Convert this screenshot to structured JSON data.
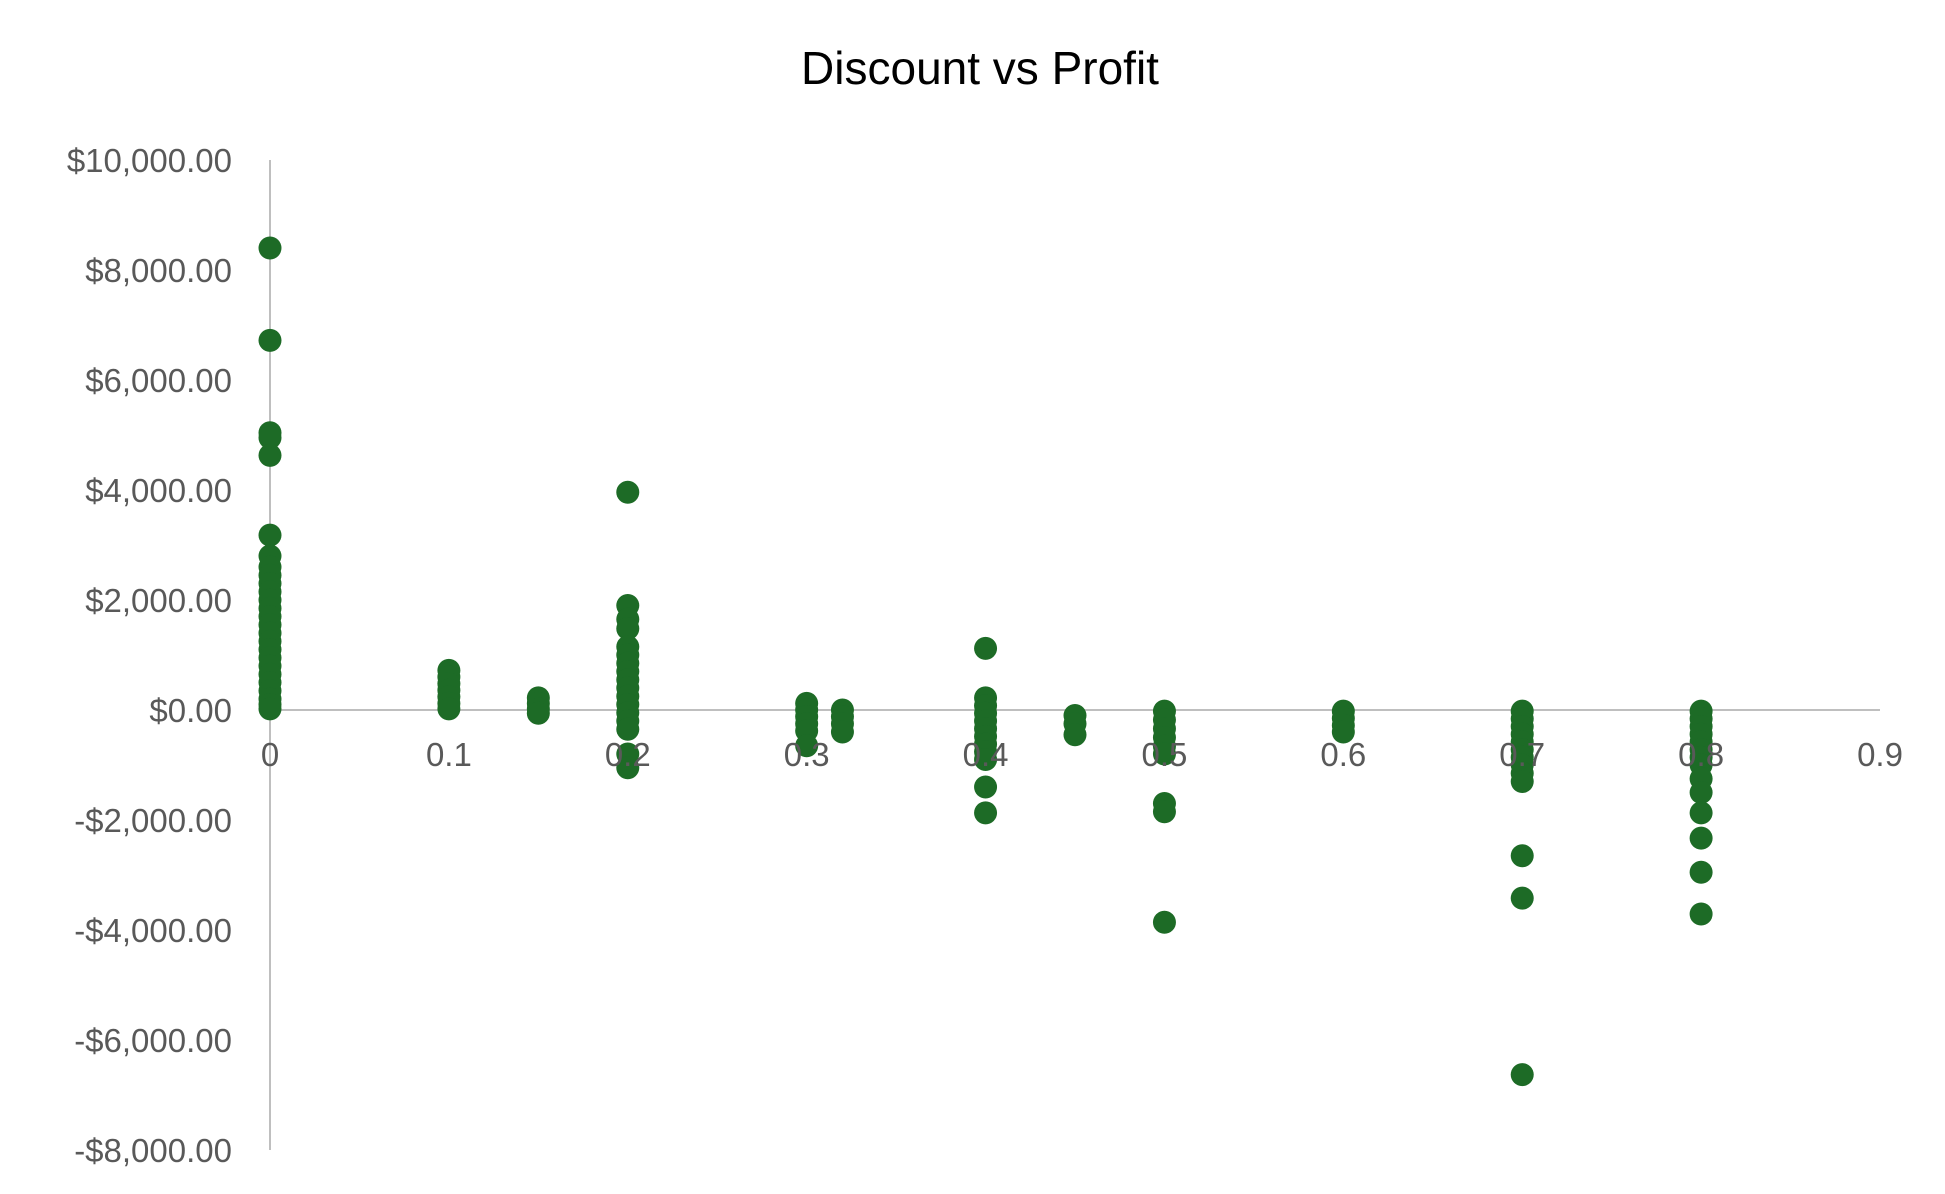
{
  "chart_data": {
    "type": "scatter",
    "title": "Discount vs Profit",
    "xlabel": "",
    "ylabel": "",
    "xlim": [
      0,
      0.9
    ],
    "ylim": [
      -8000,
      10000
    ],
    "x_ticks": [
      0,
      0.1,
      0.2,
      0.3,
      0.4,
      0.5,
      0.6,
      0.7,
      0.8,
      0.9
    ],
    "x_tick_labels": [
      "0",
      "0.1",
      "0.2",
      "0.3",
      "0.4",
      "0.5",
      "0.6",
      "0.7",
      "0.8",
      "0.9"
    ],
    "y_ticks": [
      10000,
      8000,
      6000,
      4000,
      2000,
      0,
      -2000,
      -4000,
      -6000,
      -8000
    ],
    "y_tick_labels": [
      "$10,000.00",
      "$8,000.00",
      "$6,000.00",
      "$4,000.00",
      "$2,000.00",
      "$0.00",
      "-$2,000.00",
      "-$4,000.00",
      "-$6,000.00",
      "-$8,000.00"
    ],
    "grid": false,
    "legend": "none",
    "marker_color": "#1d6b26",
    "axis_color": "#bfbfbf",
    "points": [
      {
        "x": 0,
        "y": 8400
      },
      {
        "x": 0,
        "y": 6720
      },
      {
        "x": 0,
        "y": 5040
      },
      {
        "x": 0,
        "y": 4950
      },
      {
        "x": 0,
        "y": 4630
      },
      {
        "x": 0,
        "y": 3180
      },
      {
        "x": 0,
        "y": 2800
      },
      {
        "x": 0,
        "y": 2600
      },
      {
        "x": 0,
        "y": 2450
      },
      {
        "x": 0,
        "y": 2300
      },
      {
        "x": 0,
        "y": 2150
      },
      {
        "x": 0,
        "y": 2000
      },
      {
        "x": 0,
        "y": 1850
      },
      {
        "x": 0,
        "y": 1700
      },
      {
        "x": 0,
        "y": 1550
      },
      {
        "x": 0,
        "y": 1400
      },
      {
        "x": 0,
        "y": 1250
      },
      {
        "x": 0,
        "y": 1100
      },
      {
        "x": 0,
        "y": 950
      },
      {
        "x": 0,
        "y": 800
      },
      {
        "x": 0,
        "y": 650
      },
      {
        "x": 0,
        "y": 500
      },
      {
        "x": 0,
        "y": 350
      },
      {
        "x": 0,
        "y": 200
      },
      {
        "x": 0,
        "y": 100
      },
      {
        "x": 0,
        "y": 20
      },
      {
        "x": 0.1,
        "y": 720
      },
      {
        "x": 0.1,
        "y": 600
      },
      {
        "x": 0.1,
        "y": 480
      },
      {
        "x": 0.1,
        "y": 360
      },
      {
        "x": 0.1,
        "y": 240
      },
      {
        "x": 0.1,
        "y": 120
      },
      {
        "x": 0.1,
        "y": 20
      },
      {
        "x": 0.15,
        "y": 220
      },
      {
        "x": 0.15,
        "y": 120
      },
      {
        "x": 0.15,
        "y": 20
      },
      {
        "x": 0.15,
        "y": -60
      },
      {
        "x": 0.2,
        "y": 3960
      },
      {
        "x": 0.2,
        "y": 1900
      },
      {
        "x": 0.2,
        "y": 1650
      },
      {
        "x": 0.2,
        "y": 1480
      },
      {
        "x": 0.2,
        "y": 1150
      },
      {
        "x": 0.2,
        "y": 1000
      },
      {
        "x": 0.2,
        "y": 850
      },
      {
        "x": 0.2,
        "y": 700
      },
      {
        "x": 0.2,
        "y": 550
      },
      {
        "x": 0.2,
        "y": 400
      },
      {
        "x": 0.2,
        "y": 250
      },
      {
        "x": 0.2,
        "y": 100
      },
      {
        "x": 0.2,
        "y": -50
      },
      {
        "x": 0.2,
        "y": -200
      },
      {
        "x": 0.2,
        "y": -350
      },
      {
        "x": 0.2,
        "y": -800
      },
      {
        "x": 0.2,
        "y": -1050
      },
      {
        "x": 0.3,
        "y": 120
      },
      {
        "x": 0.3,
        "y": 0
      },
      {
        "x": 0.3,
        "y": -120
      },
      {
        "x": 0.3,
        "y": -250
      },
      {
        "x": 0.3,
        "y": -380
      },
      {
        "x": 0.3,
        "y": -650
      },
      {
        "x": 0.32,
        "y": 0
      },
      {
        "x": 0.32,
        "y": -120
      },
      {
        "x": 0.32,
        "y": -250
      },
      {
        "x": 0.32,
        "y": -400
      },
      {
        "x": 0.4,
        "y": 1120
      },
      {
        "x": 0.4,
        "y": 220
      },
      {
        "x": 0.4,
        "y": 80
      },
      {
        "x": 0.4,
        "y": -60
      },
      {
        "x": 0.4,
        "y": -200
      },
      {
        "x": 0.4,
        "y": -340
      },
      {
        "x": 0.4,
        "y": -480
      },
      {
        "x": 0.4,
        "y": -620
      },
      {
        "x": 0.4,
        "y": -760
      },
      {
        "x": 0.4,
        "y": -900
      },
      {
        "x": 0.4,
        "y": -1400
      },
      {
        "x": 0.4,
        "y": -1870
      },
      {
        "x": 0.45,
        "y": -100
      },
      {
        "x": 0.45,
        "y": -250
      },
      {
        "x": 0.45,
        "y": -450
      },
      {
        "x": 0.5,
        "y": -20
      },
      {
        "x": 0.5,
        "y": -180
      },
      {
        "x": 0.5,
        "y": -340
      },
      {
        "x": 0.5,
        "y": -500
      },
      {
        "x": 0.5,
        "y": -660
      },
      {
        "x": 0.5,
        "y": -800
      },
      {
        "x": 0.5,
        "y": -1700
      },
      {
        "x": 0.5,
        "y": -1850
      },
      {
        "x": 0.5,
        "y": -3860
      },
      {
        "x": 0.6,
        "y": -20
      },
      {
        "x": 0.6,
        "y": -150
      },
      {
        "x": 0.6,
        "y": -280
      },
      {
        "x": 0.6,
        "y": -400
      },
      {
        "x": 0.7,
        "y": -20
      },
      {
        "x": 0.7,
        "y": -160
      },
      {
        "x": 0.7,
        "y": -300
      },
      {
        "x": 0.7,
        "y": -440
      },
      {
        "x": 0.7,
        "y": -580
      },
      {
        "x": 0.7,
        "y": -720
      },
      {
        "x": 0.7,
        "y": -860
      },
      {
        "x": 0.7,
        "y": -1000
      },
      {
        "x": 0.7,
        "y": -1150
      },
      {
        "x": 0.7,
        "y": -1300
      },
      {
        "x": 0.7,
        "y": -2650
      },
      {
        "x": 0.7,
        "y": -3420
      },
      {
        "x": 0.7,
        "y": -6630
      },
      {
        "x": 0.8,
        "y": -20
      },
      {
        "x": 0.8,
        "y": -160
      },
      {
        "x": 0.8,
        "y": -300
      },
      {
        "x": 0.8,
        "y": -440
      },
      {
        "x": 0.8,
        "y": -580
      },
      {
        "x": 0.8,
        "y": -720
      },
      {
        "x": 0.8,
        "y": -860
      },
      {
        "x": 0.8,
        "y": -1000
      },
      {
        "x": 0.8,
        "y": -1250
      },
      {
        "x": 0.8,
        "y": -1500
      },
      {
        "x": 0.8,
        "y": -1870
      },
      {
        "x": 0.8,
        "y": -2330
      },
      {
        "x": 0.8,
        "y": -2950
      },
      {
        "x": 0.8,
        "y": -3710
      }
    ]
  }
}
